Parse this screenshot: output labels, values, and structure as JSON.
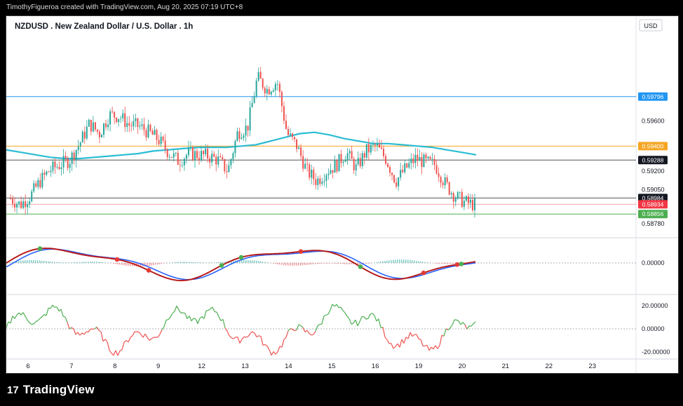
{
  "header": {
    "attribution": "TimothyFigueroa created with TradingView.com, Aug 20, 2025 07:19 UTC+8"
  },
  "footer": {
    "logo_glyph": "17",
    "brand": "TradingView"
  },
  "chart_data": {
    "type": "candlestick",
    "title": "NZDUSD . New Zealand Dollar / U.S. Dollar . 1h",
    "currency": "USD",
    "colors": {
      "up": "#26a69a",
      "down": "#ef5350",
      "background": "#ffffff",
      "ma": "#2bbcd4"
    },
    "price_axis": {
      "ticks": [
        "0.59600",
        "0.59200",
        "0.59050",
        "0.58780"
      ],
      "range": [
        0.587,
        0.603
      ]
    },
    "time_axis": [
      "6",
      "7",
      "8",
      "9",
      "12",
      "13",
      "14",
      "15",
      "16",
      "19",
      "20",
      "21",
      "22",
      "23"
    ],
    "moving_average": [
      [
        0.5937,
        0.5935,
        0.5933,
        0.5931,
        0.593,
        0.593,
        0.5931,
        0.5932,
        0.5933,
        0.5934,
        0.5936,
        0.5937,
        0.5938,
        0.5939,
        0.5939,
        0.5939,
        0.594,
        0.5941,
        0.5944,
        0.5947,
        0.595,
        0.5951,
        0.5949,
        0.5946,
        0.5944,
        0.5942,
        0.5942,
        0.5941,
        0.594,
        0.5939,
        0.5937,
        0.5935,
        0.5933
      ]
    ],
    "horizontal_levels": [
      {
        "name": "resistance-blue",
        "value": 0.59796,
        "label": "0.59796",
        "color": "#2196f3"
      },
      {
        "name": "level-orange",
        "value": 0.594,
        "label": "0.59400",
        "color": "#f5a623"
      },
      {
        "name": "level-gray-upper",
        "value": 0.59288,
        "label": "0.59288",
        "color": "#555555"
      },
      {
        "name": "level-gray-lower",
        "value": 0.58984,
        "label": "0.58984",
        "color": "#555555"
      },
      {
        "name": "current-price",
        "value": 0.58934,
        "label": "0.58934",
        "color": "#f23645"
      },
      {
        "name": "support-green",
        "value": 0.58856,
        "label": "0.58856",
        "color": "#4caf50"
      }
    ],
    "price_path": [
      0.5898,
      0.5893,
      0.59,
      0.5912,
      0.5921,
      0.5925,
      0.5929,
      0.5942,
      0.5958,
      0.595,
      0.5965,
      0.5964,
      0.5957,
      0.5956,
      0.5951,
      0.5945,
      0.5935,
      0.5928,
      0.5934,
      0.5933,
      0.5932,
      0.5929,
      0.592,
      0.5951,
      0.5955,
      0.5995,
      0.5985,
      0.5992,
      0.595,
      0.594,
      0.592,
      0.5912,
      0.592,
      0.5925,
      0.5935,
      0.5922,
      0.5936,
      0.594,
      0.593,
      0.5912,
      0.5922,
      0.593,
      0.5927,
      0.5925,
      0.591,
      0.59,
      0.5895,
      0.5893
    ],
    "indicators": {
      "oscillator_1": {
        "axis_labels": [
          "0.00000"
        ],
        "fast_color": "#2962ff",
        "slow_color": "#b71c1c",
        "up_color": "#4caf50",
        "down_color": "#e53935"
      },
      "oscillator_2": {
        "axis_labels": [
          "20.00000",
          "0.00000",
          "-20.00000"
        ],
        "up_color": "#4caf50",
        "down_color": "#ef5350"
      }
    }
  }
}
